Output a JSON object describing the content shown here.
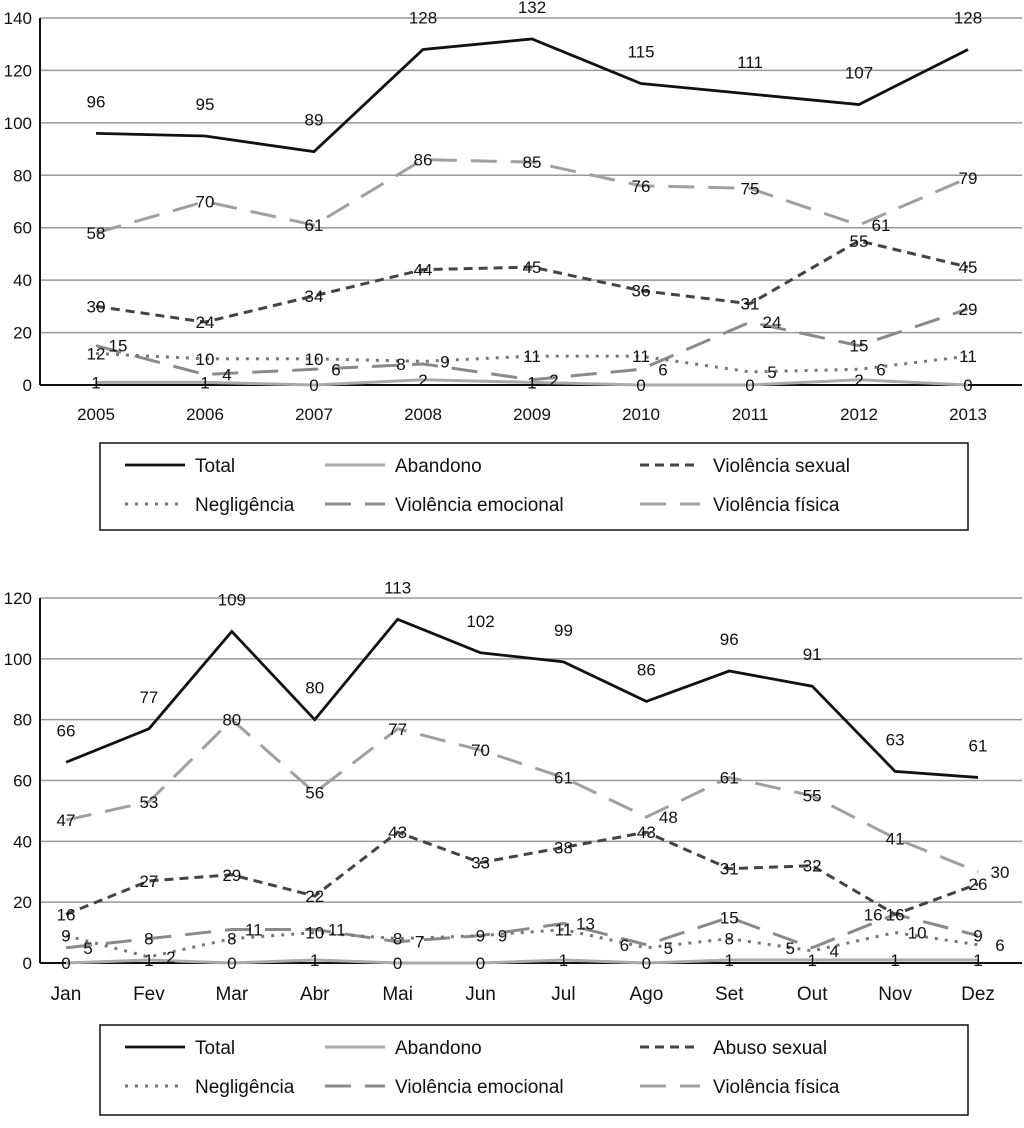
{
  "chart_data": [
    {
      "type": "line",
      "x": [
        "2005",
        "2006",
        "2007",
        "2008",
        "2009",
        "2010",
        "2011",
        "2012",
        "2013"
      ],
      "ylim": [
        0,
        140
      ],
      "yticks": [
        0,
        20,
        40,
        60,
        80,
        100,
        120,
        140
      ],
      "grid": true,
      "legend_placement": "bottom",
      "series": [
        {
          "name": "Total",
          "style": "solid-thick",
          "color": "#111111",
          "values": [
            96,
            95,
            89,
            128,
            132,
            115,
            111,
            107,
            128
          ]
        },
        {
          "name": "Abandono",
          "style": "solid",
          "color": "#aaaaaa",
          "values": [
            1,
            1,
            0,
            2,
            1,
            0,
            0,
            2,
            0
          ]
        },
        {
          "name": "Violência sexual",
          "style": "short-dash",
          "color": "#444444",
          "values": [
            30,
            24,
            34,
            44,
            45,
            36,
            31,
            55,
            45
          ]
        },
        {
          "name": "Negligência",
          "style": "dotted",
          "color": "#777777",
          "values": [
            12,
            10,
            10,
            9,
            11,
            11,
            5,
            6,
            11
          ]
        },
        {
          "name": "Violência emocional",
          "style": "long-dash",
          "color": "#8a8a8a",
          "values": [
            15,
            4,
            6,
            8,
            2,
            6,
            24,
            15,
            29
          ]
        },
        {
          "name": "Violência física",
          "style": "long-dash",
          "color": "#a0a0a0",
          "values": [
            58,
            70,
            61,
            86,
            85,
            76,
            75,
            61,
            79
          ]
        }
      ]
    },
    {
      "type": "line",
      "x": [
        "Jan",
        "Fev",
        "Mar",
        "Abr",
        "Mai",
        "Jun",
        "Jul",
        "Ago",
        "Set",
        "Out",
        "Nov",
        "Dez"
      ],
      "ylim": [
        0,
        120
      ],
      "yticks": [
        0,
        20,
        40,
        60,
        80,
        100,
        120
      ],
      "grid": true,
      "legend_placement": "bottom",
      "series": [
        {
          "name": "Total",
          "style": "solid-thick",
          "color": "#111111",
          "values": [
            66,
            77,
            109,
            80,
            113,
            102,
            99,
            86,
            96,
            91,
            63,
            61
          ]
        },
        {
          "name": "Abandono",
          "style": "solid",
          "color": "#aaaaaa",
          "values": [
            0,
            1,
            0,
            1,
            0,
            0,
            1,
            0,
            1,
            1,
            1,
            1
          ]
        },
        {
          "name": "Abuso sexual",
          "style": "short-dash",
          "color": "#444444",
          "values": [
            16,
            27,
            29,
            22,
            43,
            33,
            38,
            43,
            31,
            32,
            16,
            26
          ]
        },
        {
          "name": "Negligência",
          "style": "dotted",
          "color": "#777777",
          "values": [
            9,
            2,
            8,
            10,
            8,
            9,
            11,
            5,
            8,
            4,
            10,
            6
          ]
        },
        {
          "name": "Violência emocional",
          "style": "long-dash",
          "color": "#8a8a8a",
          "values": [
            5,
            8,
            11,
            11,
            7,
            9,
            13,
            6,
            15,
            5,
            16,
            9
          ]
        },
        {
          "name": "Violência física",
          "style": "long-dash",
          "color": "#a0a0a0",
          "values": [
            47,
            53,
            80,
            56,
            77,
            70,
            61,
            48,
            61,
            55,
            41,
            30
          ]
        }
      ]
    }
  ]
}
